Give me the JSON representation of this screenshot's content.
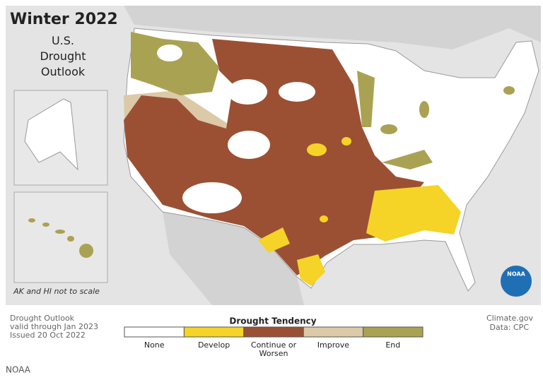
{
  "header": {
    "title": "Winter 2022",
    "subtitle_lines": [
      "U.S.",
      "Drought",
      "Outlook"
    ]
  },
  "inset_note": "AK and HI not to scale",
  "info": {
    "lines": [
      "Drought Outlook",
      "valid through Jan 2023",
      "Issued 20 Oct 2022"
    ]
  },
  "credit": {
    "site": "Climate.gov",
    "data": "Data: CPC"
  },
  "logo": "NOAA",
  "legend": {
    "title": "Drought Tendency",
    "items": [
      {
        "label_lines": [
          "None"
        ],
        "color": "#ffffff"
      },
      {
        "label_lines": [
          "Develop"
        ],
        "color": "#f5d327"
      },
      {
        "label_lines": [
          "Continue or",
          "Worsen"
        ],
        "color": "#9b5034"
      },
      {
        "label_lines": [
          "Improve"
        ],
        "color": "#dcc9a8"
      },
      {
        "label_lines": [
          "End"
        ],
        "color": "#aaa253"
      }
    ]
  },
  "caption": "NOAA"
}
